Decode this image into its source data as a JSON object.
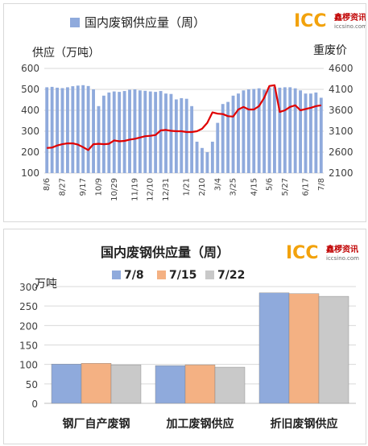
{
  "chart_data": [
    {
      "type": "bar+line",
      "title": "国内废钢供应量（周）",
      "ylabel": "供应（万吨）",
      "y2label": "重废价",
      "ylim": [
        100,
        600
      ],
      "yticks": [
        100,
        200,
        300,
        400,
        500,
        600
      ],
      "y2lim": [
        2100,
        4600
      ],
      "y2ticks": [
        2100,
        2600,
        3100,
        3600,
        4100,
        4600
      ],
      "legend": [
        {
          "label": "国内废钢供应量（周）",
          "color": "#8FAADC"
        }
      ],
      "bar_color": "#8FAADC",
      "line_color": "#E00000",
      "x_tick_labels": [
        "8/6",
        "8/27",
        "9/17",
        "10/9",
        "10/29",
        "11/19",
        "12/10",
        "12/31",
        "1/21",
        "2/10",
        "3/4",
        "3/25",
        "4/15",
        "5/6",
        "5/27",
        "6/17",
        "7/8"
      ],
      "supply": [
        510,
        512,
        508,
        506,
        510,
        515,
        518,
        520,
        516,
        500,
        420,
        470,
        485,
        490,
        488,
        492,
        498,
        500,
        495,
        493,
        490,
        488,
        492,
        480,
        478,
        452,
        458,
        455,
        420,
        250,
        220,
        200,
        250,
        340,
        430,
        440,
        470,
        480,
        495,
        500,
        502,
        505,
        498,
        510,
        512,
        508,
        510,
        510,
        505,
        495,
        480,
        480,
        485,
        460
      ],
      "heavy_scrap_price": [
        2700,
        2710,
        2760,
        2790,
        2810,
        2810,
        2780,
        2720,
        2650,
        2790,
        2800,
        2790,
        2800,
        2880,
        2860,
        2870,
        2900,
        2920,
        2950,
        2980,
        2990,
        3010,
        3120,
        3130,
        3110,
        3100,
        3100,
        3080,
        3080,
        3100,
        3160,
        3300,
        3550,
        3520,
        3510,
        3460,
        3450,
        3620,
        3680,
        3620,
        3620,
        3700,
        3900,
        4180,
        4200,
        3560,
        3600,
        3680,
        3720,
        3600,
        3630,
        3660,
        3700,
        3720
      ]
    },
    {
      "type": "bar",
      "title": "国内废钢供应量（周）",
      "ylabel": "万吨",
      "ylim": [
        0,
        300
      ],
      "yticks": [
        0,
        50,
        100,
        150,
        200,
        250,
        300
      ],
      "categories": [
        "钢厂自产废钢",
        "加工废钢供应",
        "折旧废钢供应"
      ],
      "series": [
        {
          "name": "7/8",
          "color": "#8FAADC",
          "values": [
            101,
            97,
            284
          ]
        },
        {
          "name": "7/15",
          "color": "#F4B183",
          "values": [
            103,
            99,
            282
          ]
        },
        {
          "name": "7/22",
          "color": "#C9C9C9",
          "values": [
            99,
            93,
            275
          ]
        }
      ]
    }
  ],
  "logo": {
    "brand": "ICC",
    "name": "鑫椤资讯",
    "url": "iccsino.com"
  }
}
